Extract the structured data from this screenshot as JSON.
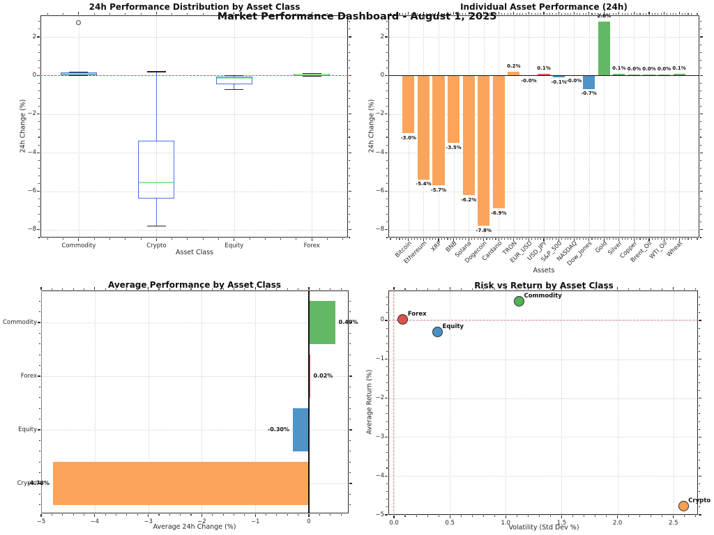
{
  "suptitle": "Market Performance Dashboard - August 1, 2025",
  "chart_data": [
    {
      "type": "boxplot",
      "title": "24h Performance Distribution by Asset Class",
      "xlabel": "Asset Class",
      "ylabel": "24h Change (%)",
      "categories": [
        "Commodity",
        "Crypto",
        "Equity",
        "Forex"
      ],
      "yticks": [
        2,
        0,
        -2,
        -4,
        -6,
        -8
      ],
      "ylim": [
        -8.4,
        3.12
      ],
      "zero_line": 0,
      "boxes": [
        {
          "category": "Commodity",
          "whislo": 0.0,
          "q1": 0.02,
          "med": 0.09,
          "q3": 0.16,
          "whishi": 0.16,
          "outliers": [
            2.75
          ]
        },
        {
          "category": "Crypto",
          "whislo": -7.8,
          "q1": -6.38,
          "med": -5.55,
          "q3": -3.38,
          "whishi": 0.2,
          "outliers": []
        },
        {
          "category": "Equity",
          "whislo": -0.72,
          "q1": -0.45,
          "med": -0.12,
          "q3": -0.07,
          "whishi": 0.0,
          "outliers": []
        },
        {
          "category": "Forex",
          "whislo": -0.02,
          "q1": -0.01,
          "med": 0.04,
          "q3": 0.08,
          "whishi": 0.1,
          "outliers": []
        }
      ],
      "colors": {
        "box": "#4d6fe3",
        "median": "#90e890",
        "cap": "#222222",
        "zero": "#e8443c",
        "outlier": "#444444"
      }
    },
    {
      "type": "bar",
      "title": "Individual Asset Performance (24h)",
      "xlabel": "Assets",
      "ylabel": "24h Change (%)",
      "categories": [
        "Bitcoin",
        "Ethereum",
        "XRP",
        "BNB",
        "Solana",
        "Dogecoin",
        "Cardano",
        "TRON",
        "EUR_USD",
        "USD_JPY",
        "S&P_500",
        "NASDAQ",
        "Dow_Jones",
        "Gold",
        "Silver",
        "Copper",
        "Brent_Oil",
        "WTI_Oil",
        "Wheat"
      ],
      "values": [
        -3.0,
        -5.4,
        -5.7,
        -3.5,
        -6.2,
        -7.8,
        -6.9,
        0.2,
        -0.04,
        0.1,
        -0.1,
        -0.04,
        -0.7,
        2.8,
        0.1,
        0.02,
        0.04,
        0.01,
        0.1
      ],
      "value_labels": [
        "-3.0%",
        "-5.4%",
        "-5.7%",
        "-3.5%",
        "-6.2%",
        "-7.8%",
        "-6.9%",
        "0.2%",
        "-0.0%",
        "0.1%",
        "-0.1%",
        "-0.0%",
        "-0.7%",
        "2.8%",
        "0.1%",
        "0.0%",
        "0.0%",
        "0.0%",
        "0.1%"
      ],
      "bar_colors": [
        "#faa55b",
        "#faa55b",
        "#faa55b",
        "#faa55b",
        "#faa55b",
        "#faa55b",
        "#faa55b",
        "#faa55b",
        "#dd5c5c",
        "#dd5c5c",
        "#4e94c6",
        "#4e94c6",
        "#4e94c6",
        "#63b864",
        "#63b864",
        "#63b864",
        "#63b864",
        "#63b864",
        "#63b864"
      ],
      "yticks": [
        2,
        0,
        -2,
        -4,
        -6,
        -8
      ],
      "ylim": [
        -8.4,
        3.12
      ],
      "class_palette": {
        "crypto": "#faa55b",
        "forex": "#dd5c5c",
        "equity": "#4e94c6",
        "commodity": "#63b864"
      }
    },
    {
      "type": "bar-horizontal",
      "title": "Average Performance by Asset Class",
      "xlabel": "Average 24h Change (%)",
      "categories": [
        "Commodity",
        "Forex",
        "Equity",
        "Crypto"
      ],
      "values": [
        0.49,
        0.02,
        -0.3,
        -4.78
      ],
      "value_labels": [
        "0.49%",
        "0.02%",
        "-0.30%",
        "-4.78%"
      ],
      "bar_colors": [
        "#63b864",
        "#dd5c5c",
        "#4e94c6",
        "#faa55b"
      ],
      "xticks": [
        -5,
        -4,
        -3,
        -2,
        -1,
        0
      ],
      "xlim": [
        -5,
        0.742
      ]
    },
    {
      "type": "scatter",
      "title": "Risk vs Return by Asset Class",
      "xlabel": "Volatility (Std Dev %)",
      "ylabel": "Average Return (%)",
      "xticks": [
        0,
        0.5,
        1,
        1.5,
        2,
        2.5
      ],
      "yticks": [
        0,
        -1,
        -2,
        -3,
        -4,
        -5
      ],
      "xlim": [
        -0.05,
        2.72
      ],
      "ylim": [
        -5,
        0.77
      ],
      "zero_color": "#f29191",
      "points": [
        {
          "label": "Forex",
          "x": 0.08,
          "y": 0.02,
          "color": "#d9534f"
        },
        {
          "label": "Equity",
          "x": 0.39,
          "y": -0.3,
          "color": "#4a90c4"
        },
        {
          "label": "Commodity",
          "x": 1.12,
          "y": 0.49,
          "color": "#54b158"
        },
        {
          "label": "Crypto",
          "x": 2.59,
          "y": -4.78,
          "color": "#fb9e4f"
        }
      ]
    }
  ]
}
